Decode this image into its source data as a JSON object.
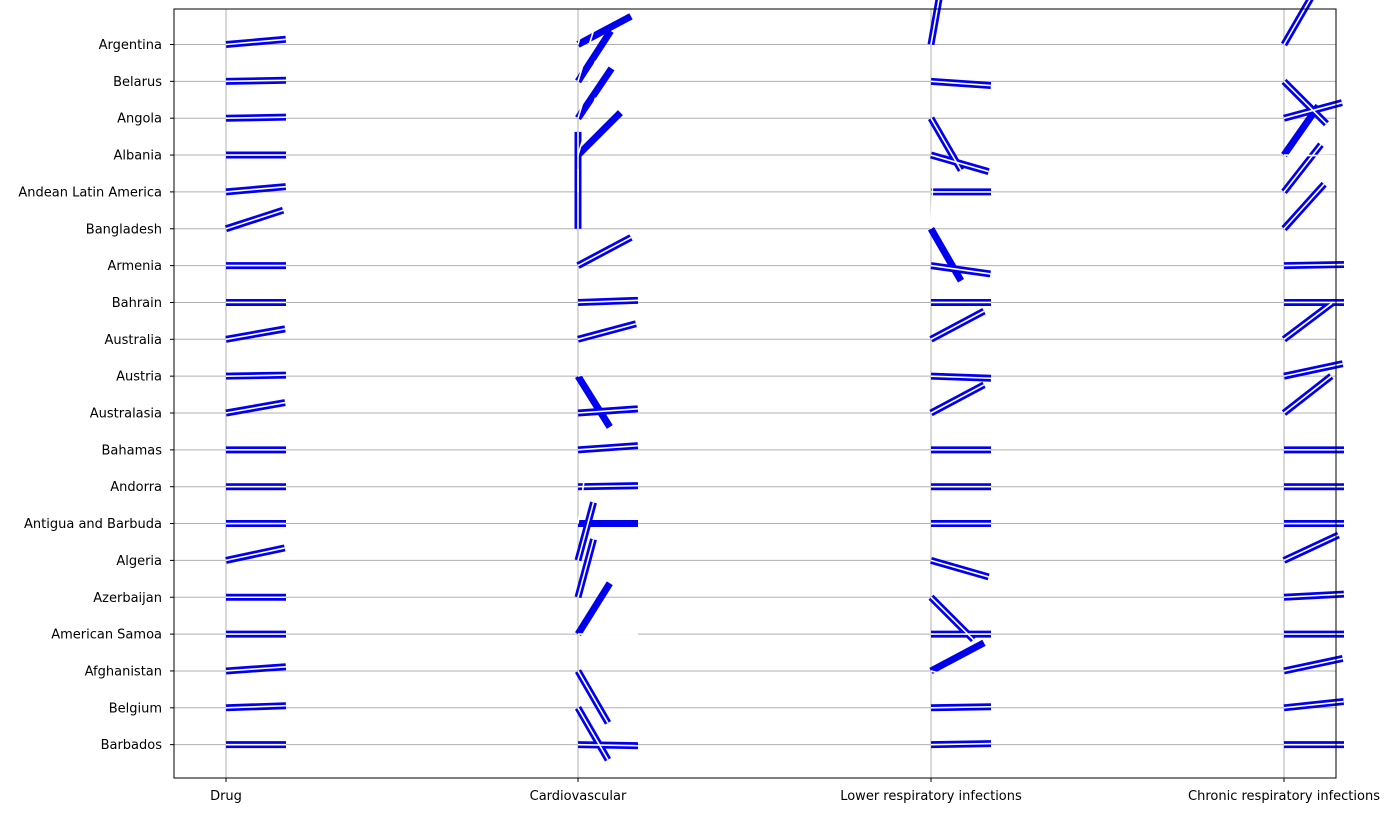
{
  "chart_data": {
    "type": "line",
    "encoding": "Each cell shows two line segments from the grid intersection: a thin white segment and a thick blue segment; values are segment direction angles in degrees (0 = pointing right, positive = counter-clockwise).",
    "categories": [
      "Drug",
      "Cardiovascular",
      "Lower respiratory infections",
      "Chronic respiratory infections"
    ],
    "rows": [
      "Argentina",
      "Belarus",
      "Angola",
      "Albania",
      "Andean Latin America",
      "Bangladesh",
      "Armenia",
      "Bahrain",
      "Australia",
      "Austria",
      "Australasia",
      "Bahamas",
      "Andorra",
      "Antigua and Barbuda",
      "Algeria",
      "Azerbaijan",
      "American Samoa",
      "Afghanistan",
      "Belgium",
      "Barbados"
    ],
    "series": [
      {
        "color": "#0000ee",
        "angles": [
          [
            5,
            28,
            80,
            60
          ],
          [
            1,
            57,
            -4,
            -45
          ],
          [
            1,
            56,
            -60,
            15
          ],
          [
            0,
            45,
            -16,
            55
          ],
          [
            5,
            90,
            0,
            52
          ],
          [
            18,
            90,
            -60,
            48
          ],
          [
            0,
            28,
            -8,
            1
          ],
          [
            0,
            2,
            0,
            0
          ],
          [
            10,
            15,
            28,
            37
          ],
          [
            1,
            -58,
            -2,
            12
          ],
          [
            10,
            4,
            28,
            38
          ],
          [
            0,
            4,
            0,
            0
          ],
          [
            0,
            1,
            0,
            0
          ],
          [
            0,
            0,
            0,
            0
          ],
          [
            12,
            75,
            -16,
            25
          ],
          [
            0,
            75,
            -45,
            3
          ],
          [
            0,
            58,
            0,
            0
          ],
          [
            4,
            -60,
            28,
            12
          ],
          [
            2,
            -60,
            1,
            6
          ],
          [
            0,
            -1,
            1,
            0
          ]
        ]
      },
      {
        "color": "#ffffff",
        "angles": [
          [
            5,
            75,
            80,
            60
          ],
          [
            1,
            73,
            -4,
            -45
          ],
          [
            1,
            73,
            -60,
            15
          ],
          [
            0,
            73,
            -16,
            -1
          ],
          [
            5,
            90,
            0,
            52
          ],
          [
            18,
            90,
            88,
            48
          ],
          [
            0,
            28,
            -8,
            1
          ],
          [
            0,
            2,
            0,
            0
          ],
          [
            10,
            15,
            28,
            37
          ],
          [
            1,
            15,
            -2,
            12
          ],
          [
            10,
            4,
            28,
            38
          ],
          [
            0,
            4,
            0,
            0
          ],
          [
            0,
            1,
            0,
            0
          ],
          [
            0,
            82,
            0,
            0
          ],
          [
            12,
            75,
            -16,
            25
          ],
          [
            0,
            75,
            -45,
            3
          ],
          [
            0,
            0,
            0,
            0
          ],
          [
            4,
            -60,
            -16,
            12
          ],
          [
            2,
            -60,
            1,
            6
          ],
          [
            0,
            -1,
            1,
            0
          ]
        ]
      }
    ],
    "xlabel": "",
    "ylabel": "",
    "grid": true
  }
}
